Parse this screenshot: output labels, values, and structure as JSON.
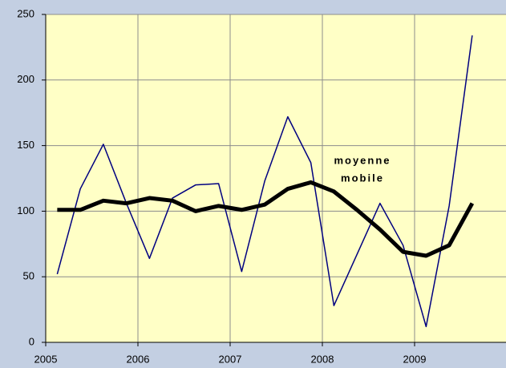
{
  "chart_data": {
    "type": "line",
    "x": [
      2005.125,
      2005.375,
      2005.625,
      2005.875,
      2006.125,
      2006.375,
      2006.625,
      2006.875,
      2007.125,
      2007.375,
      2007.625,
      2007.875,
      2008.125,
      2008.375,
      2008.625,
      2008.875,
      2009.125,
      2009.375,
      2009.625
    ],
    "series": [
      {
        "color": "#000080",
        "width": 1.5,
        "values": [
          52,
          117,
          151,
          106,
          64,
          110,
          120,
          121,
          54,
          123,
          172,
          137,
          28,
          67,
          106,
          74,
          12,
          104,
          234
        ]
      },
      {
        "color": "#000000",
        "width": 5,
        "values": [
          101,
          101,
          108,
          106,
          110,
          108,
          100,
          104,
          101,
          105,
          117,
          122,
          115,
          101,
          86,
          69,
          66,
          74,
          106
        ]
      }
    ],
    "annotation": [
      "moyenne",
      "mobile"
    ],
    "xlim": [
      2005,
      2010
    ],
    "xticks": [
      2005,
      2006,
      2007,
      2008,
      2009
    ],
    "ylim": [
      0,
      250
    ],
    "yticks": [
      0,
      50,
      100,
      150,
      200,
      250
    ],
    "grid": true
  }
}
